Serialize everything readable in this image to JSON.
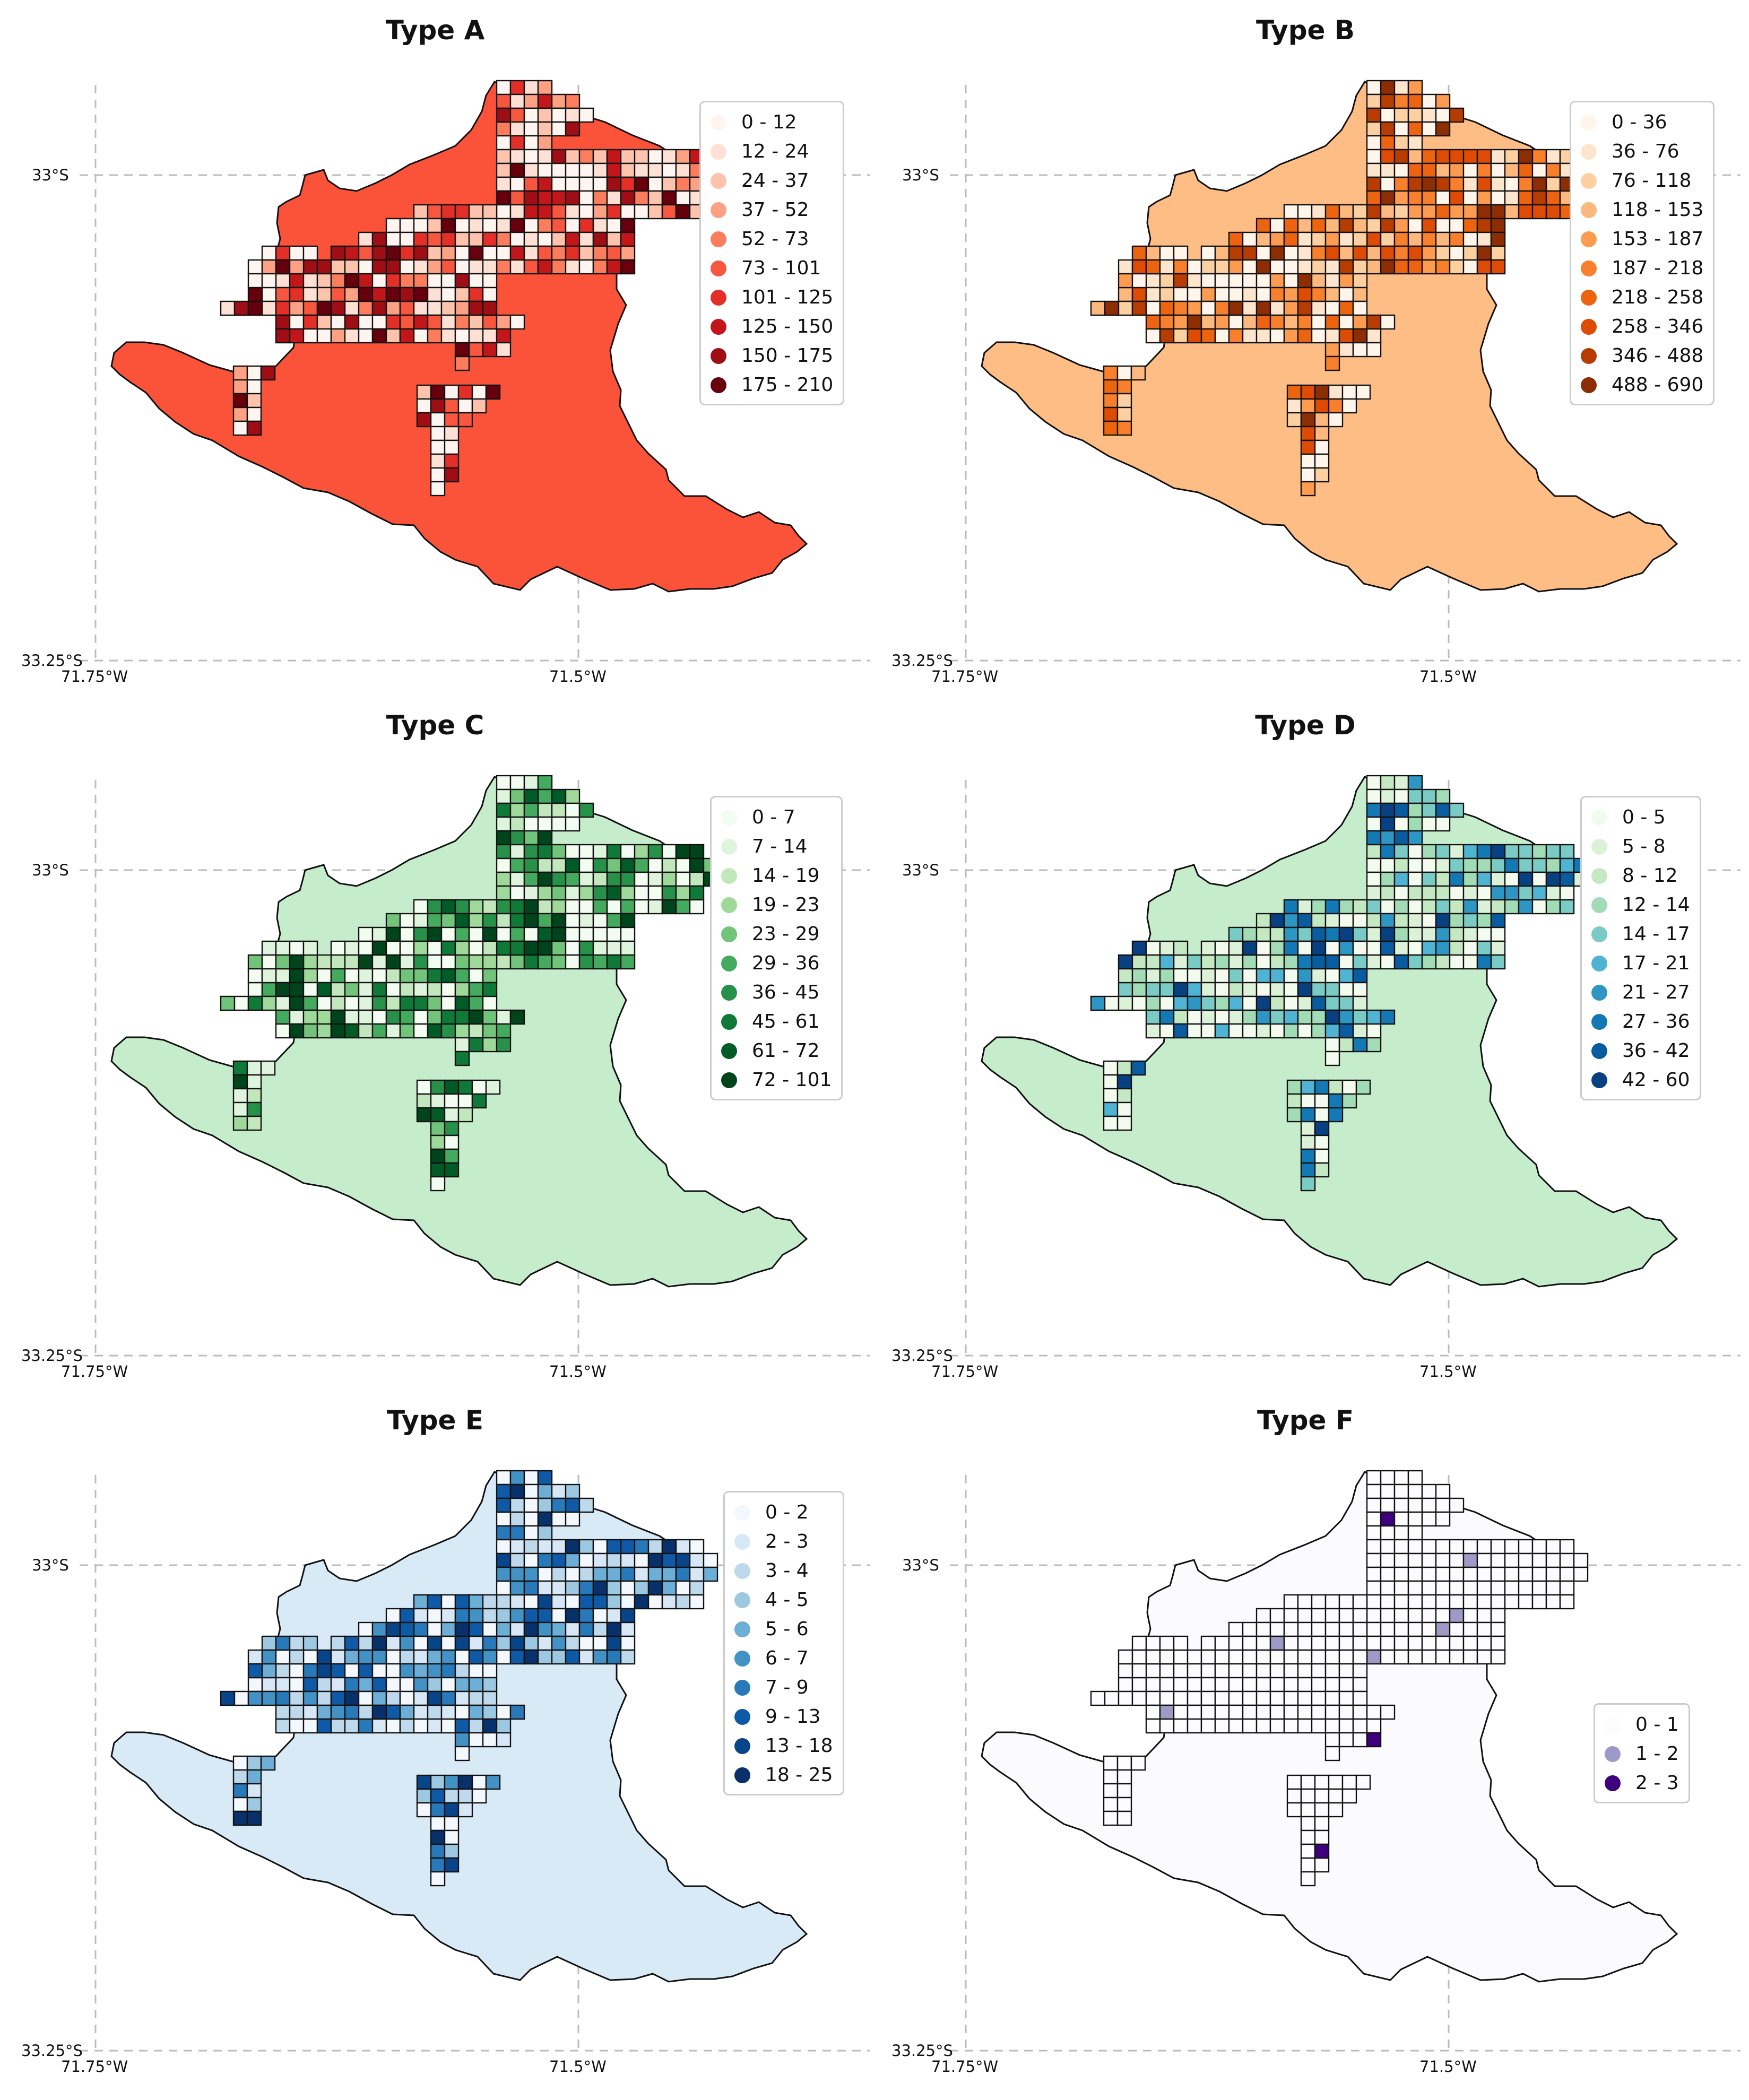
{
  "panels": [
    {
      "title": "Type A",
      "base_color": "#fb5339",
      "palette": [
        "#fff5f0",
        "#fee1d4",
        "#fdc3ac",
        "#fca183",
        "#fb7d5d",
        "#f6573e",
        "#e32f27",
        "#c3161b",
        "#9f0e14",
        "#67000d"
      ],
      "legend": [
        "0 - 12",
        "12 - 24",
        "24 - 37",
        "37 - 52",
        "52 - 73",
        "73 - 101",
        "101 - 125",
        "125 - 150",
        "150 - 175",
        "175 - 210"
      ]
    },
    {
      "title": "Type B",
      "base_color": "#fdbd84",
      "palette": [
        "#fff5eb",
        "#fee6ce",
        "#fdd0a2",
        "#fdb97d",
        "#fd9b50",
        "#f87f2c",
        "#ed6410",
        "#dd4b04",
        "#b73c02",
        "#8c2d04"
      ],
      "legend": [
        "0 - 36",
        "36 - 76",
        "76 - 118",
        "118 - 153",
        "153 - 187",
        "187 - 218",
        "218 - 258",
        "258 - 346",
        "346 - 488",
        "488 - 690"
      ]
    },
    {
      "title": "Type C",
      "base_color": "#c6edcb",
      "palette": [
        "#f3fcf0",
        "#dff4dc",
        "#c3e7bd",
        "#9fd99a",
        "#72c47a",
        "#44ab5e",
        "#27914a",
        "#0f7a37",
        "#005b26",
        "#00441b"
      ],
      "legend": [
        "0 - 7",
        "7 - 14",
        "14 - 19",
        "19 - 23",
        "23 - 29",
        "29 - 36",
        "36 - 45",
        "45 - 61",
        "61 - 72",
        "72 - 101"
      ]
    },
    {
      "title": "Type D",
      "base_color": "#c6edcb",
      "palette": [
        "#f3fbef",
        "#dcf2d8",
        "#c4e9c2",
        "#a2dcb6",
        "#7acbc5",
        "#4fb3d3",
        "#2d96c2",
        "#1279b5",
        "#085c9f",
        "#084081"
      ],
      "legend": [
        "0 - 5",
        "5 - 8",
        "8 - 12",
        "12 - 14",
        "14 - 17",
        "17 - 21",
        "21 - 27",
        "27 - 36",
        "36 - 42",
        "42 - 60"
      ]
    },
    {
      "title": "Type E",
      "base_color": "#d9eaf7",
      "palette": [
        "#f3f8fe",
        "#d8e7f5",
        "#bed8ec",
        "#9cc9e1",
        "#6caed6",
        "#4292c6",
        "#2879b9",
        "#0e5aa6",
        "#084488",
        "#08306b"
      ],
      "legend": [
        "0 - 2",
        "2 - 3",
        "3 - 4",
        "4 - 5",
        "5 - 6",
        "6 - 7",
        "7 - 9",
        "9 - 13",
        "13 - 18",
        "18 - 25"
      ]
    },
    {
      "title": "Type F",
      "base_color": "#fbfafd",
      "palette": [
        "#fcfbfd",
        "#9e9ac8",
        "#3f007d"
      ],
      "legend": [
        "0 - 1",
        "1 - 2",
        "2 - 3"
      ]
    }
  ],
  "axes": {
    "lat_ticks": [
      "33°S",
      "33.25°S"
    ],
    "lon_ticks": [
      "71.75°W",
      "71.5°W"
    ]
  }
}
